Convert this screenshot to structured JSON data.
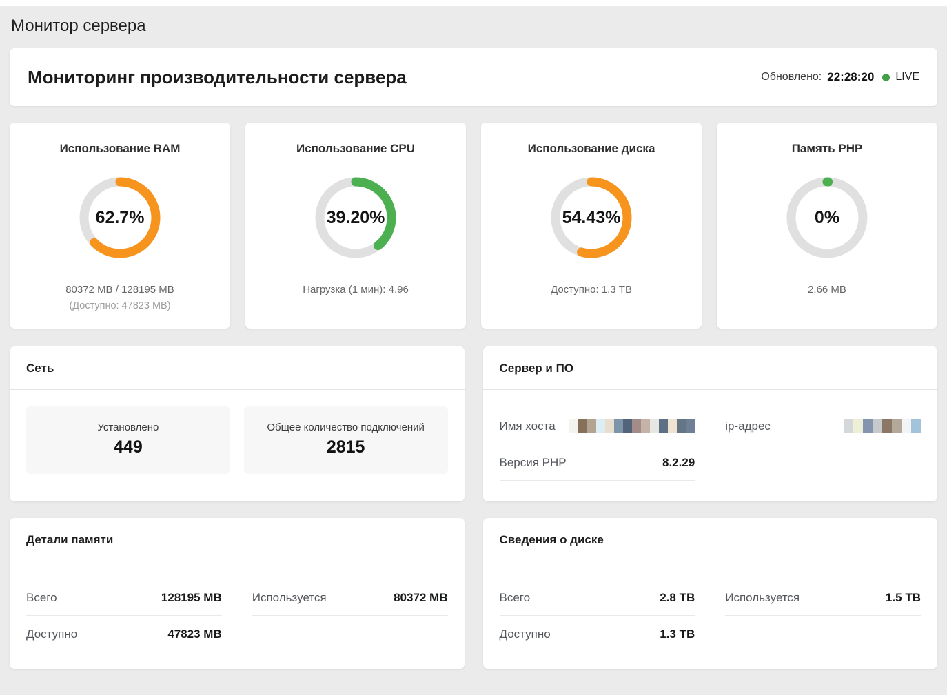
{
  "page": {
    "title": "Монитор сервера"
  },
  "header": {
    "title": "Мониторинг производительности сервера",
    "updated_label": "Обновлено:",
    "updated_time": "22:28:20",
    "live_label": "LIVE",
    "live_color": "#43a047"
  },
  "gauges": [
    {
      "title": "Использование RAM",
      "percent": 62.7,
      "value_text": "62.7%",
      "color": "#f7941e",
      "sub1": "80372 MB / 128195 MB",
      "sub2": "(Доступно: 47823 MB)"
    },
    {
      "title": "Использование CPU",
      "percent": 39.2,
      "value_text": "39.20%",
      "color": "#4caf50",
      "sub1": "Нагрузка (1 мин): 4.96",
      "sub2": ""
    },
    {
      "title": "Использование диска",
      "percent": 54.43,
      "value_text": "54.43%",
      "color": "#f7941e",
      "sub1": "Доступно: 1.3 TB",
      "sub2": ""
    },
    {
      "title": "Память PHP",
      "percent": 0,
      "value_text": "0%",
      "color": "#4caf50",
      "sub1": "2.66 MB",
      "sub2": ""
    }
  ],
  "network": {
    "title": "Сеть",
    "stats": [
      {
        "label": "Установлено",
        "value": "449"
      },
      {
        "label": "Общее количество подключений",
        "value": "2815"
      }
    ]
  },
  "server": {
    "title": "Сервер и ПО",
    "rows": [
      {
        "label": "Имя хоста",
        "redacted": true
      },
      {
        "label": "ip-адрес",
        "redacted": true
      },
      {
        "label": "Версия PHP",
        "value": "8.2.29"
      }
    ],
    "hostname_mosaic": [
      "#f5f3ef",
      "#87705a",
      "#b3a391",
      "#dcedf4",
      "#e7decf",
      "#7d95a9",
      "#51647a",
      "#a38c88",
      "#c4b3a6",
      "#e8e6e2",
      "#5d7085",
      "#f0e3d1",
      "#647586",
      "#6e8094"
    ],
    "ip_mosaic": [
      "#d5d8da",
      "#edefd7",
      "#8495ad",
      "#c7cacc",
      "#8c7666",
      "#b4a89a",
      "#f3f4f5",
      "#a3c3da"
    ]
  },
  "memory": {
    "title": "Детали памяти",
    "rows": [
      {
        "label": "Всего",
        "value": "128195 MB"
      },
      {
        "label": "Используется",
        "value": "80372 MB"
      },
      {
        "label": "Доступно",
        "value": "47823 MB"
      }
    ]
  },
  "disk": {
    "title": "Сведения о диске",
    "rows": [
      {
        "label": "Всего",
        "value": "2.8 TB"
      },
      {
        "label": "Используется",
        "value": "1.5 TB"
      },
      {
        "label": "Доступно",
        "value": "1.3 TB"
      }
    ]
  }
}
